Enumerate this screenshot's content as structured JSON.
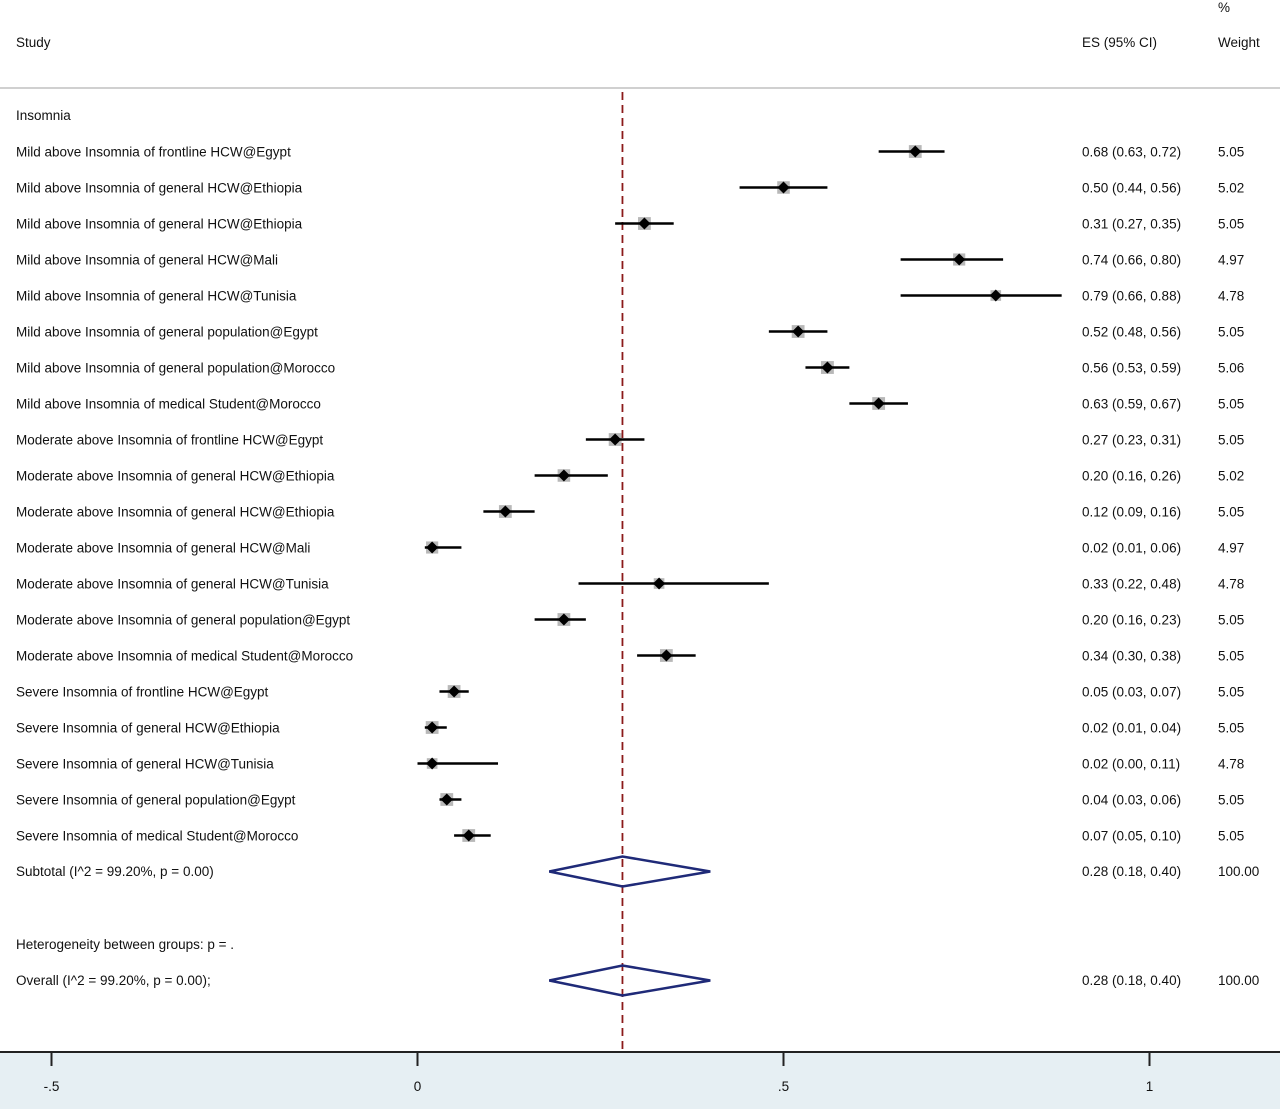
{
  "header": {
    "study_label": "Study",
    "es_label": "ES (95% CI)",
    "pct_label": "%",
    "weight_label": "Weight"
  },
  "colors": {
    "diamond": "#1f2a78",
    "reference_line": "#8b1a1a",
    "axis_band": "#e6eff3",
    "square": "#b8b8b8",
    "divider": "#d0d0d0"
  },
  "chart_data": {
    "type": "forest",
    "group_label": "Insomnia",
    "studies": [
      {
        "label": "Mild above Insomnia of frontline HCW@Egypt",
        "es": 0.68,
        "lo": 0.63,
        "hi": 0.72,
        "es_text": "0.68 (0.63, 0.72)",
        "weight_text": "5.05",
        "weight": 5.05
      },
      {
        "label": "Mild above Insomnia of general HCW@Ethiopia",
        "es": 0.5,
        "lo": 0.44,
        "hi": 0.56,
        "es_text": "0.50 (0.44, 0.56)",
        "weight_text": "5.02",
        "weight": 5.02
      },
      {
        "label": "Mild above Insomnia of general HCW@Ethiopia",
        "es": 0.31,
        "lo": 0.27,
        "hi": 0.35,
        "es_text": "0.31 (0.27, 0.35)",
        "weight_text": "5.05",
        "weight": 5.05
      },
      {
        "label": "Mild above Insomnia of general HCW@Mali",
        "es": 0.74,
        "lo": 0.66,
        "hi": 0.8,
        "es_text": "0.74 (0.66, 0.80)",
        "weight_text": "4.97",
        "weight": 4.97
      },
      {
        "label": "Mild above Insomnia of general HCW@Tunisia",
        "es": 0.79,
        "lo": 0.66,
        "hi": 0.88,
        "es_text": "0.79 (0.66, 0.88)",
        "weight_text": "4.78",
        "weight": 4.78
      },
      {
        "label": "Mild above Insomnia of general population@Egypt",
        "es": 0.52,
        "lo": 0.48,
        "hi": 0.56,
        "es_text": "0.52 (0.48, 0.56)",
        "weight_text": "5.05",
        "weight": 5.05
      },
      {
        "label": "Mild above Insomnia of general population@Morocco",
        "es": 0.56,
        "lo": 0.53,
        "hi": 0.59,
        "es_text": "0.56 (0.53, 0.59)",
        "weight_text": "5.06",
        "weight": 5.06
      },
      {
        "label": "Mild above Insomnia of medical Student@Morocco",
        "es": 0.63,
        "lo": 0.59,
        "hi": 0.67,
        "es_text": "0.63 (0.59, 0.67)",
        "weight_text": "5.05",
        "weight": 5.05
      },
      {
        "label": "Moderate above Insomnia of frontline HCW@Egypt",
        "es": 0.27,
        "lo": 0.23,
        "hi": 0.31,
        "es_text": "0.27 (0.23, 0.31)",
        "weight_text": "5.05",
        "weight": 5.05
      },
      {
        "label": "Moderate above Insomnia of general HCW@Ethiopia",
        "es": 0.2,
        "lo": 0.16,
        "hi": 0.26,
        "es_text": "0.20 (0.16, 0.26)",
        "weight_text": "5.02",
        "weight": 5.02
      },
      {
        "label": "Moderate above Insomnia of general HCW@Ethiopia",
        "es": 0.12,
        "lo": 0.09,
        "hi": 0.16,
        "es_text": "0.12 (0.09, 0.16)",
        "weight_text": "5.05",
        "weight": 5.05
      },
      {
        "label": "Moderate above Insomnia of general HCW@Mali",
        "es": 0.02,
        "lo": 0.01,
        "hi": 0.06,
        "es_text": "0.02 (0.01, 0.06)",
        "weight_text": "4.97",
        "weight": 4.97
      },
      {
        "label": "Moderate above Insomnia of general HCW@Tunisia",
        "es": 0.33,
        "lo": 0.22,
        "hi": 0.48,
        "es_text": "0.33 (0.22, 0.48)",
        "weight_text": "4.78",
        "weight": 4.78
      },
      {
        "label": "Moderate above Insomnia of general population@Egypt",
        "es": 0.2,
        "lo": 0.16,
        "hi": 0.23,
        "es_text": "0.20 (0.16, 0.23)",
        "weight_text": "5.05",
        "weight": 5.05
      },
      {
        "label": "Moderate above Insomnia of medical Student@Morocco",
        "es": 0.34,
        "lo": 0.3,
        "hi": 0.38,
        "es_text": "0.34 (0.30, 0.38)",
        "weight_text": "5.05",
        "weight": 5.05
      },
      {
        "label": "Severe Insomnia of frontline HCW@Egypt",
        "es": 0.05,
        "lo": 0.03,
        "hi": 0.07,
        "es_text": "0.05 (0.03, 0.07)",
        "weight_text": "5.05",
        "weight": 5.05
      },
      {
        "label": "Severe Insomnia of general HCW@Ethiopia",
        "es": 0.02,
        "lo": 0.01,
        "hi": 0.04,
        "es_text": "0.02 (0.01, 0.04)",
        "weight_text": "5.05",
        "weight": 5.05
      },
      {
        "label": "Severe Insomnia of general HCW@Tunisia",
        "es": 0.02,
        "lo": 0.0,
        "hi": 0.11,
        "es_text": "0.02 (0.00, 0.11)",
        "weight_text": "4.78",
        "weight": 4.78
      },
      {
        "label": "Severe Insomnia of general population@Egypt",
        "es": 0.04,
        "lo": 0.03,
        "hi": 0.06,
        "es_text": "0.04 (0.03, 0.06)",
        "weight_text": "5.05",
        "weight": 5.05
      },
      {
        "label": "Severe Insomnia of medical Student@Morocco",
        "es": 0.07,
        "lo": 0.05,
        "hi": 0.1,
        "es_text": "0.07 (0.05, 0.10)",
        "weight_text": "5.05",
        "weight": 5.05
      }
    ],
    "subtotal": {
      "label": "Subtotal  (I^2 = 99.20%, p = 0.00)",
      "es": 0.28,
      "lo": 0.18,
      "hi": 0.4,
      "es_text": "0.28 (0.18, 0.40)",
      "weight_text": "100.00"
    },
    "heterogeneity_label": "Heterogeneity between groups: p = .",
    "overall": {
      "label": "Overall  (I^2 = 99.20%, p = 0.00);",
      "es": 0.28,
      "lo": 0.18,
      "hi": 0.4,
      "es_text": "0.28 (0.18, 0.40)",
      "weight_text": "100.00"
    },
    "reference_line": 0.28,
    "x_ticks": [
      -0.5,
      0,
      0.5,
      1
    ],
    "x_tick_labels": [
      "-.5",
      "0",
      ".5",
      "1"
    ],
    "xlim": [
      -0.5,
      1
    ]
  }
}
